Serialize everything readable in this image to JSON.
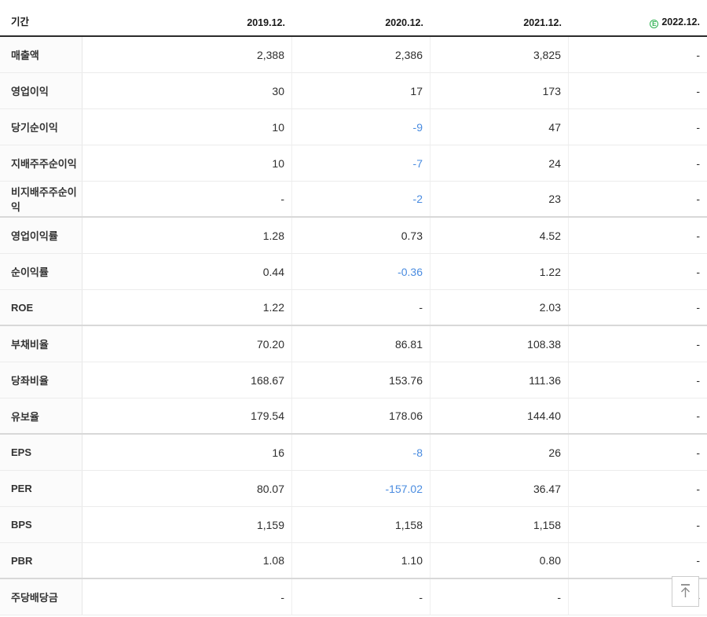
{
  "header": {
    "period_label": "기간",
    "columns": [
      "2019.12.",
      "2020.12.",
      "2021.12.",
      "2022.12."
    ],
    "estimate_icon_letter": "E",
    "estimate_color": "#2eb150"
  },
  "colors": {
    "negative_value": "#4a8ce0",
    "header_border": "#2b2b2b"
  },
  "chart_data": {
    "type": "table",
    "columns": [
      "기간",
      "2019.12.",
      "2020.12.",
      "2021.12.",
      "2022.12."
    ],
    "rows": [
      {
        "label": "매출액",
        "values": [
          "2,388",
          "2,386",
          "3,825",
          "-"
        ],
        "group_end": false
      },
      {
        "label": "영업이익",
        "values": [
          "30",
          "17",
          "173",
          "-"
        ],
        "group_end": false
      },
      {
        "label": "당기순이익",
        "values": [
          "10",
          "-9",
          "47",
          "-"
        ],
        "group_end": false
      },
      {
        "label": "지배주주순이익",
        "values": [
          "10",
          "-7",
          "24",
          "-"
        ],
        "group_end": false
      },
      {
        "label": "비지배주주순이익",
        "values": [
          "-",
          "-2",
          "23",
          "-"
        ],
        "group_end": true
      },
      {
        "label": "영업이익률",
        "values": [
          "1.28",
          "0.73",
          "4.52",
          "-"
        ],
        "group_end": false
      },
      {
        "label": "순이익률",
        "values": [
          "0.44",
          "-0.36",
          "1.22",
          "-"
        ],
        "group_end": false
      },
      {
        "label": "ROE",
        "values": [
          "1.22",
          "-",
          "2.03",
          "-"
        ],
        "group_end": true
      },
      {
        "label": "부채비율",
        "values": [
          "70.20",
          "86.81",
          "108.38",
          "-"
        ],
        "group_end": false
      },
      {
        "label": "당좌비율",
        "values": [
          "168.67",
          "153.76",
          "111.36",
          "-"
        ],
        "group_end": false
      },
      {
        "label": "유보율",
        "values": [
          "179.54",
          "178.06",
          "144.40",
          "-"
        ],
        "group_end": true
      },
      {
        "label": "EPS",
        "values": [
          "16",
          "-8",
          "26",
          "-"
        ],
        "group_end": false
      },
      {
        "label": "PER",
        "values": [
          "80.07",
          "-157.02",
          "36.47",
          "-"
        ],
        "group_end": false
      },
      {
        "label": "BPS",
        "values": [
          "1,159",
          "1,158",
          "1,158",
          "-"
        ],
        "group_end": false
      },
      {
        "label": "PBR",
        "values": [
          "1.08",
          "1.10",
          "0.80",
          "-"
        ],
        "group_end": true
      },
      {
        "label": "주당배당금",
        "values": [
          "-",
          "-",
          "-",
          "-"
        ],
        "group_end": false
      }
    ]
  },
  "back_to_top": {
    "icon": "arrow-up-to-top-icon"
  }
}
